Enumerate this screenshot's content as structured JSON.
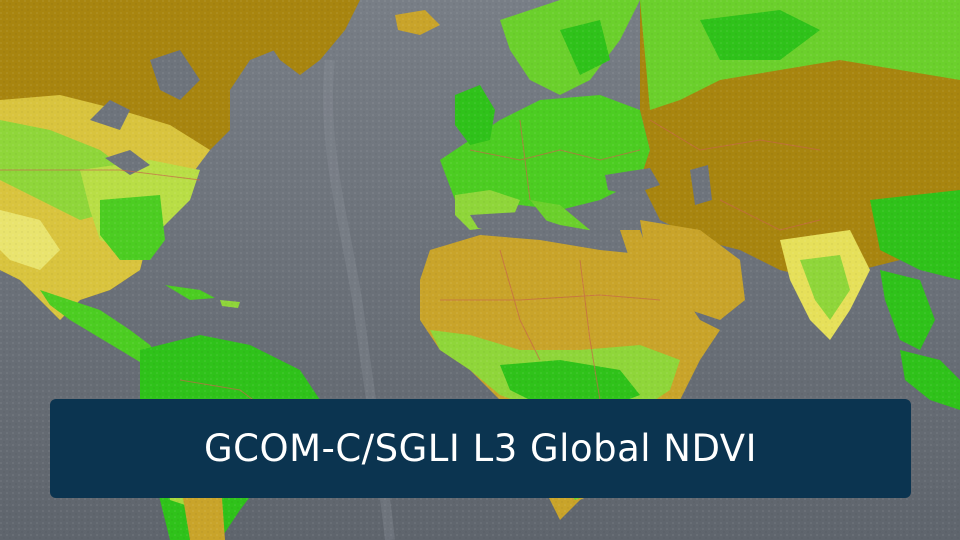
{
  "title": "GCOM-C/SGLI L3 Global NDVI",
  "colors": {
    "ocean": "#6e747c",
    "ocean_deep": "#5d636b",
    "barren": "#a8850f",
    "sparse": "#c9a42a",
    "low_vegetation": "#e6e05a",
    "moderate_vegetation": "#8fd63a",
    "high_vegetation": "#2fc21a",
    "borders": "#c8664a",
    "banner": "#0b3450",
    "banner_text": "#ffffff"
  }
}
